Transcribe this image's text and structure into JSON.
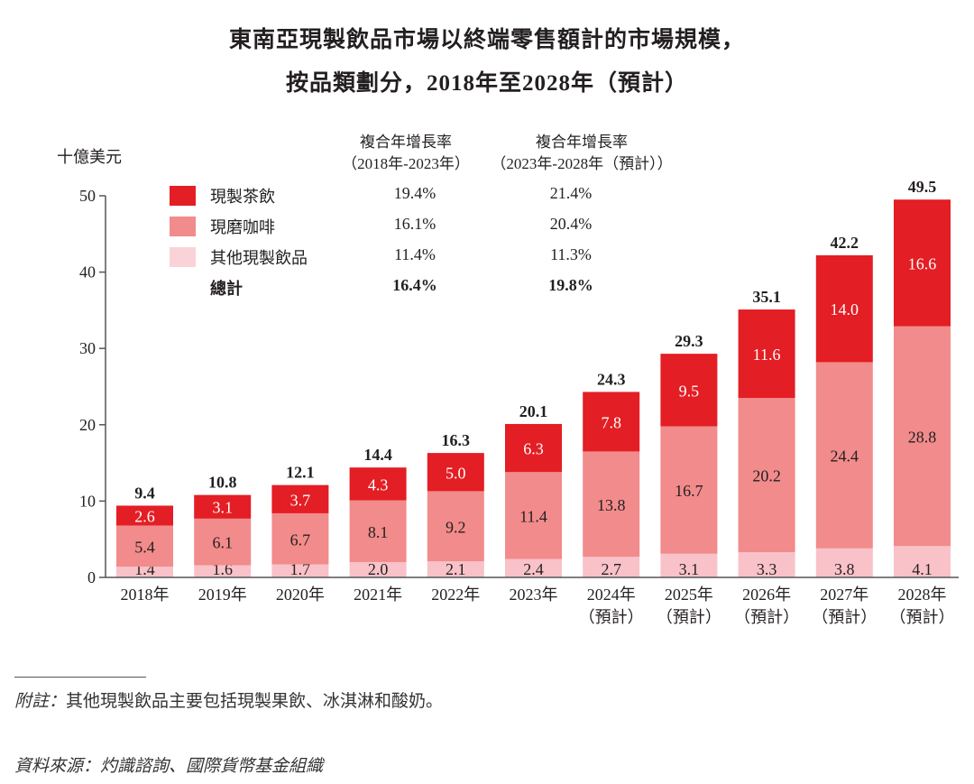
{
  "title_line1": "東南亞現製飲品市場以終端零售額計的市場規模，",
  "title_line2": "按品類劃分，2018年至2028年（預計）",
  "unit_label": "十億美元",
  "cagr_headers": [
    {
      "line1": "複合年增長率",
      "line2": "（2018年-2023年）"
    },
    {
      "line1": "複合年增長率",
      "line2": "（2023年-2028年（預計））"
    }
  ],
  "legend": [
    {
      "label": "現製茶飲",
      "color": "#E31E24",
      "cagr_2018_2023": "19.4%",
      "cagr_2023_2028": "21.4%"
    },
    {
      "label": "現磨咖啡",
      "color": "#F28B8B",
      "cagr_2018_2023": "16.1%",
      "cagr_2023_2028": "20.4%"
    },
    {
      "label": "其他現製飲品",
      "color": "#FAD3D8",
      "cagr_2018_2023": "11.4%",
      "cagr_2023_2028": "11.3%"
    },
    {
      "label": "總計",
      "color": null,
      "cagr_2018_2023": "16.4%",
      "cagr_2023_2028": "19.8%"
    }
  ],
  "note_lead": "附註：",
  "note_text": "其他現製飲品主要包括現製果飲、冰淇淋和酸奶。",
  "source": "資料來源：灼識諮詢、國際貨幣基金組織",
  "chart_data": {
    "type": "bar",
    "stacked": true,
    "title": "東南亞現製飲品市場以終端零售額計的市場規模，按品類劃分，2018年至2028年（預計）",
    "xlabel": "",
    "ylabel": "十億美元",
    "ylim": [
      0,
      50
    ],
    "yticks": [
      0,
      10,
      20,
      30,
      40,
      50
    ],
    "grid": false,
    "legend_position": "top-left",
    "categories": [
      {
        "year": "2018年",
        "sub": ""
      },
      {
        "year": "2019年",
        "sub": ""
      },
      {
        "year": "2020年",
        "sub": ""
      },
      {
        "year": "2021年",
        "sub": ""
      },
      {
        "year": "2022年",
        "sub": ""
      },
      {
        "year": "2023年",
        "sub": ""
      },
      {
        "year": "2024年",
        "sub": "（預計）"
      },
      {
        "year": "2025年",
        "sub": "（預計）"
      },
      {
        "year": "2026年",
        "sub": "（預計）"
      },
      {
        "year": "2027年",
        "sub": "（預計）"
      },
      {
        "year": "2028年",
        "sub": "（預計）"
      }
    ],
    "series": [
      {
        "name": "其他現製飲品",
        "color": "#F8C2C8",
        "label_color": "#231f20",
        "values": [
          1.4,
          1.6,
          1.7,
          2.0,
          2.1,
          2.4,
          2.7,
          3.1,
          3.3,
          3.8,
          4.1
        ]
      },
      {
        "name": "現磨咖啡",
        "color": "#F28B8B",
        "label_color": "#231f20",
        "values": [
          5.4,
          6.1,
          6.7,
          8.1,
          9.2,
          11.4,
          13.8,
          16.7,
          20.2,
          24.4,
          28.8
        ]
      },
      {
        "name": "現製茶飲",
        "color": "#E31E24",
        "label_color": "#ffffff",
        "values": [
          2.6,
          3.1,
          3.7,
          4.3,
          5.0,
          6.3,
          7.8,
          9.5,
          11.6,
          14.0,
          16.6
        ]
      }
    ],
    "totals": [
      9.4,
      10.8,
      12.1,
      14.4,
      16.3,
      20.1,
      24.3,
      29.3,
      35.1,
      42.2,
      49.5
    ]
  }
}
